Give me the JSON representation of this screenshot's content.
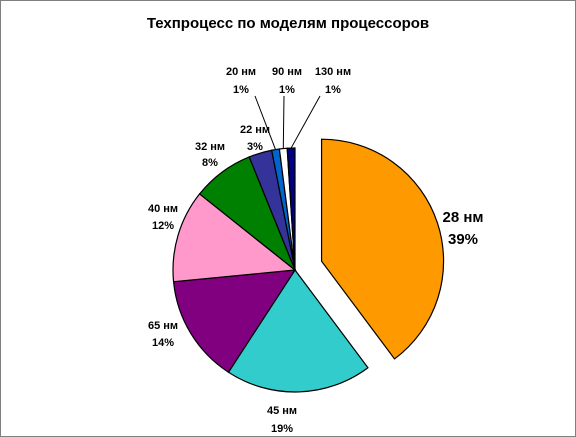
{
  "chart_data": {
    "type": "pie",
    "title": "Техпроцесс по моделям процессоров",
    "slices": [
      {
        "name": "28 нм",
        "value": 39,
        "pct_label": "39%",
        "color": "#FF9900",
        "exploded": true
      },
      {
        "name": "45 нм",
        "value": 19,
        "pct_label": "19%",
        "color": "#33CCCC",
        "exploded": false
      },
      {
        "name": "65 нм",
        "value": 14,
        "pct_label": "14%",
        "color": "#800080",
        "exploded": false
      },
      {
        "name": "40 нм",
        "value": 12,
        "pct_label": "12%",
        "color": "#FF99CC",
        "exploded": false
      },
      {
        "name": "32 нм",
        "value": 8,
        "pct_label": "8%",
        "color": "#008000",
        "exploded": false
      },
      {
        "name": "22 нм",
        "value": 3,
        "pct_label": "3%",
        "color": "#333399",
        "exploded": false
      },
      {
        "name": "20 нм",
        "value": 1,
        "pct_label": "1%",
        "color": "#0066CC",
        "exploded": false
      },
      {
        "name": "90 нм",
        "value": 1,
        "pct_label": "1%",
        "color": "#FFFFFF",
        "exploded": false
      },
      {
        "name": "130 нм",
        "value": 1,
        "pct_label": "1%",
        "color": "#000080",
        "exploded": false
      }
    ],
    "legend": "none",
    "data_labels": "category and percent"
  }
}
